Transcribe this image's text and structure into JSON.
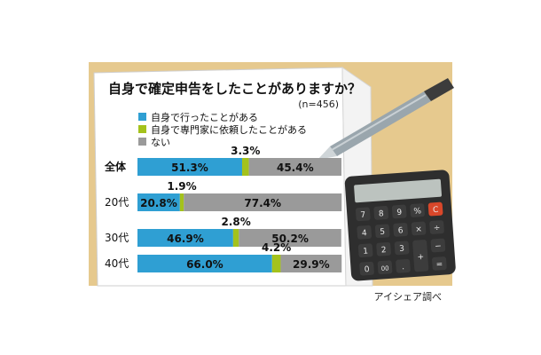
{
  "chart_data": {
    "type": "bar",
    "stacked": true,
    "orientation": "horizontal",
    "title": "自身で確定申告をしたことがありますか？",
    "sample_note": "(n=456)",
    "categories": [
      "全体",
      "20代",
      "30代",
      "40代"
    ],
    "series": [
      {
        "name": "自身で行ったことがある",
        "values": [
          51.3,
          20.8,
          46.9,
          66.0
        ],
        "labels": [
          "51.3%",
          "20.8%",
          "46.9%",
          "66.0%"
        ],
        "color": "#2f9fd3"
      },
      {
        "name": "自身で専門家に依頼したことがある",
        "values": [
          3.3,
          1.9,
          2.8,
          4.2
        ],
        "labels": [
          "3.3%",
          "1.9%",
          "2.8%",
          "4.2%"
        ],
        "color": "#a4c21c"
      },
      {
        "name": "ない",
        "values": [
          45.4,
          77.4,
          50.2,
          29.9
        ],
        "labels": [
          "45.4%",
          "77.4%",
          "50.2%",
          "29.9%"
        ],
        "color": "#9a9a9a"
      }
    ],
    "xlim": [
      0,
      100
    ],
    "legend": "top-left",
    "grid": false
  },
  "source_label": "アイシェア調べ",
  "calculator": {
    "keys": [
      [
        "7",
        "8",
        "9",
        "%",
        "C"
      ],
      [
        "4",
        "5",
        "6",
        "×",
        "÷"
      ],
      [
        "1",
        "2",
        "3",
        "",
        "−"
      ],
      [
        "0",
        "00",
        ".",
        "+",
        "="
      ]
    ]
  },
  "colors": {
    "background_board": "#e6c98e",
    "paper": "#ffffff",
    "calculator_body": "#2e2e2e",
    "calculator_key": "#3c3c3c",
    "calculator_key_text": "#e8e8e8",
    "calculator_c_key": "#d9472a",
    "calculator_display": "#bcc3bf"
  }
}
